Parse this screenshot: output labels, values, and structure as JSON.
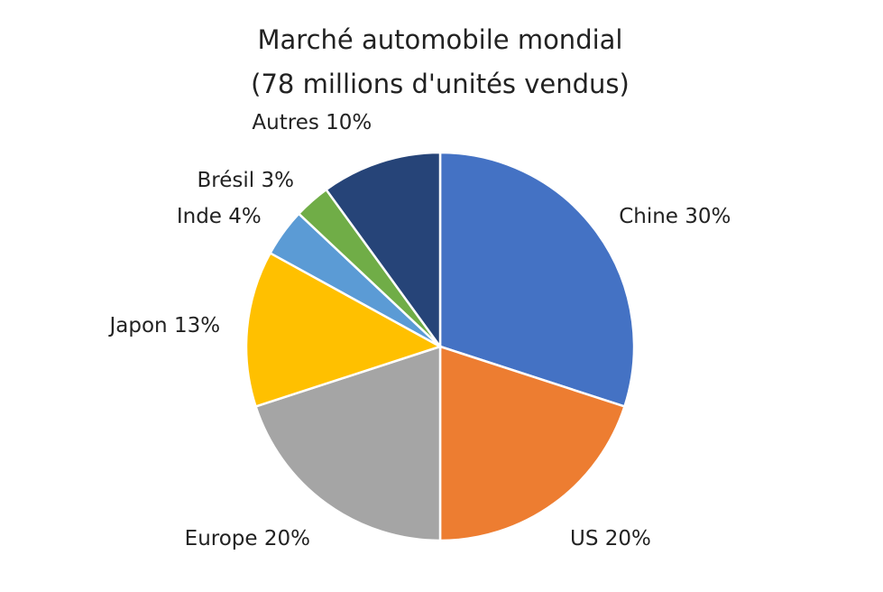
{
  "chart_data": {
    "type": "pie",
    "title": "Marché automobile mondial",
    "subtitle": "(78 millions d'unités vendus)",
    "categories": [
      "Chine",
      "US",
      "Europe",
      "Japon",
      "Inde",
      "Brésil",
      "Autres"
    ],
    "values": [
      30,
      20,
      20,
      13,
      4,
      3,
      10
    ],
    "value_labels": [
      "30%",
      "20%",
      "20%",
      "13%",
      "4%",
      "3%",
      "10%"
    ],
    "colors": [
      "#4472c4",
      "#ed7d31",
      "#a5a5a5",
      "#ffc000",
      "#5b9bd5",
      "#70ad47",
      "#264478"
    ]
  }
}
